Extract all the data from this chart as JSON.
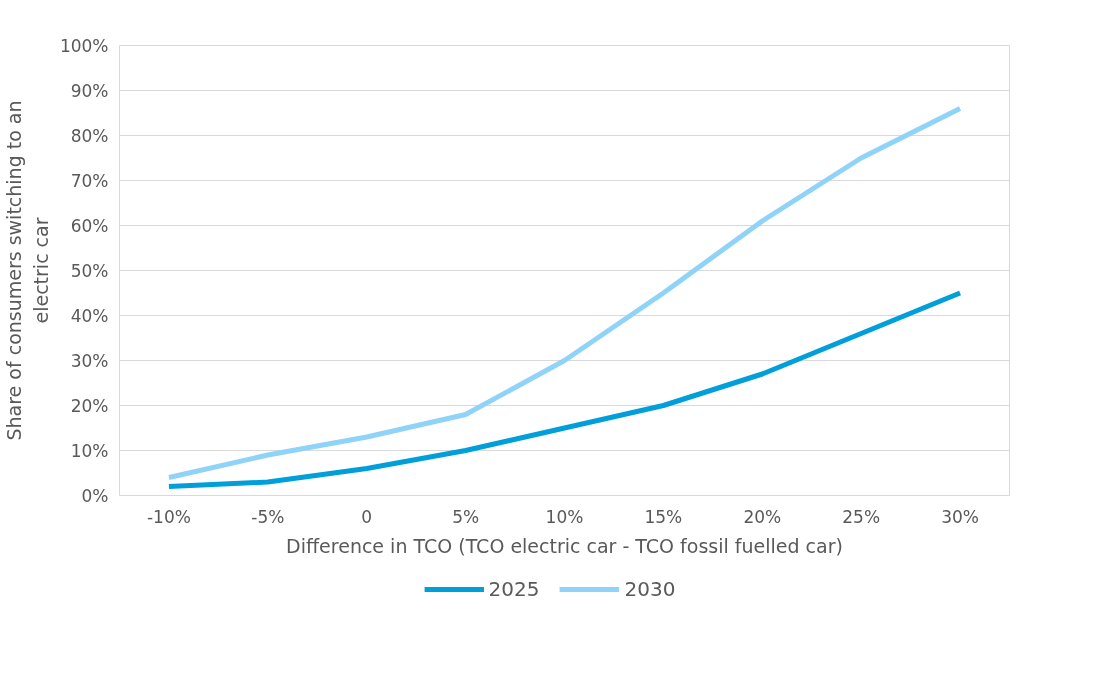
{
  "chart_data": {
    "type": "line",
    "xlabel": "Difference in TCO (TCO electric car - TCO fossil fuelled car)",
    "ylabel": "Share of consumers switching to an electric car",
    "categories": [
      "-10%",
      "-5%",
      "0",
      "5%",
      "10%",
      "15%",
      "20%",
      "25%",
      "30%"
    ],
    "series": [
      {
        "name": "2025",
        "color": "#009fd9",
        "values": [
          2,
          3,
          6,
          10,
          15,
          20,
          27,
          36,
          45
        ]
      },
      {
        "name": "2030",
        "color": "#8fd3f8",
        "values": [
          4,
          9,
          13,
          18,
          30,
          45,
          61,
          75,
          86
        ]
      }
    ],
    "ylim": [
      0,
      100
    ],
    "yticks": [
      {
        "value": 0,
        "label": "0%"
      },
      {
        "value": 10,
        "label": "10%"
      },
      {
        "value": 20,
        "label": "20%"
      },
      {
        "value": 30,
        "label": "30%"
      },
      {
        "value": 40,
        "label": "40%"
      },
      {
        "value": 50,
        "label": "50%"
      },
      {
        "value": 60,
        "label": "60%"
      },
      {
        "value": 70,
        "label": "70%"
      },
      {
        "value": 80,
        "label": "80%"
      },
      {
        "value": 90,
        "label": "90%"
      },
      {
        "value": 100,
        "label": "100%"
      }
    ],
    "grid": "y",
    "legend": "bottom",
    "marker": "none",
    "line_style": "solid"
  }
}
